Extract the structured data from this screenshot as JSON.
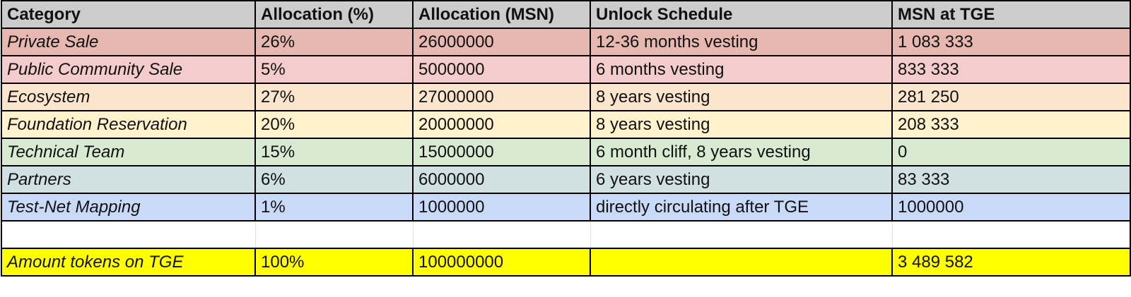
{
  "table": {
    "headers": [
      "Category",
      "Allocation (%)",
      "Allocation (MSN)",
      "Unlock Schedule",
      "MSN at TGE"
    ],
    "rows": [
      {
        "category": "Private Sale",
        "percent": "26%",
        "msn": "26000000",
        "schedule": "12-36 months vesting",
        "tge": "1 083 333",
        "color": "#e6b8af"
      },
      {
        "category": "Public Community Sale",
        "percent": "5%",
        "msn": "5000000",
        "schedule": "6 months vesting",
        "tge": "833 333",
        "color": "#f4cccc"
      },
      {
        "category": "Ecosystem",
        "percent": "27%",
        "msn": "27000000",
        "schedule": "8 years vesting",
        "tge": "281 250",
        "color": "#fce5cd"
      },
      {
        "category": "Foundation Reservation",
        "percent": "20%",
        "msn": "20000000",
        "schedule": "8 years vesting",
        "tge": "208 333",
        "color": "#fff2cc"
      },
      {
        "category": "Technical Team",
        "percent": "15%",
        "msn": "15000000",
        "schedule": "6 month cliff, 8 years vesting",
        "tge": "0",
        "color": "#d9ead3"
      },
      {
        "category": "Partners",
        "percent": "6%",
        "msn": "6000000",
        "schedule": "6 years vesting",
        "tge": "83 333",
        "color": "#d0e0e3"
      },
      {
        "category": "Test-Net Mapping",
        "percent": "1%",
        "msn": "1000000",
        "schedule": "directly circulating after TGE",
        "tge": "1000000",
        "color": "#c9daf8"
      }
    ],
    "total": {
      "category": "Amount tokens on TGE",
      "percent": "100%",
      "msn": "100000000",
      "schedule": "",
      "tge": "3 489 582",
      "color": "#ffff00"
    }
  }
}
